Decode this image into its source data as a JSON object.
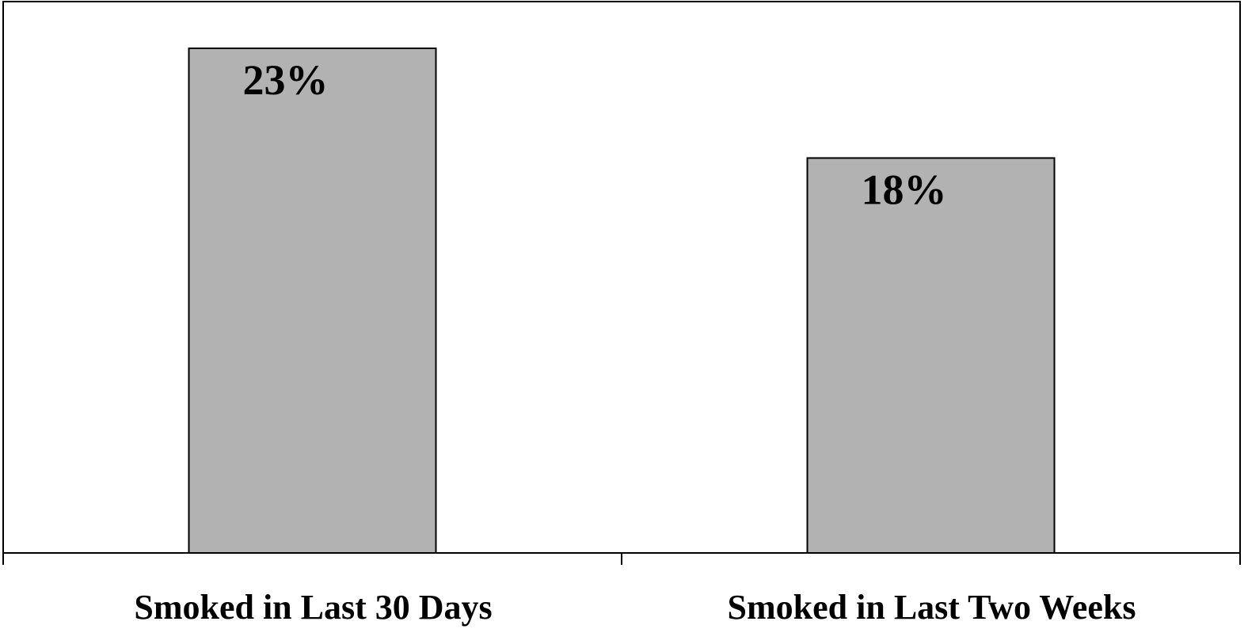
{
  "chart_data": {
    "type": "bar",
    "categories": [
      "Smoked in Last 30 Days",
      "Smoked in Last Two Weeks"
    ],
    "values": [
      23,
      18
    ],
    "data_labels": [
      "23%",
      "18%"
    ],
    "unit": "%",
    "ylim": [
      0,
      25
    ],
    "grid": false,
    "legend": "none",
    "bar_color": "#b2b2b2",
    "bar_outline_color": "#000000",
    "background_color": "#ffffff"
  }
}
